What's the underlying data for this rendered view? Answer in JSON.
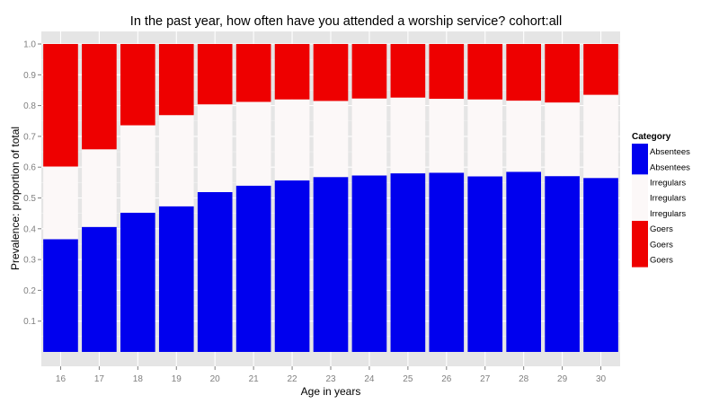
{
  "chart_data": {
    "type": "bar",
    "stacked": true,
    "title": "In the past year, how often have you attended a worship service?   cohort:all",
    "xlabel": "Age in years",
    "ylabel": "Prevalence: proportion of total",
    "ylim": [
      0,
      1.0
    ],
    "yticks": [
      "0.1",
      "0.2",
      "0.3",
      "0.4",
      "0.5",
      "0.6",
      "0.7",
      "0.8",
      "0.9",
      "1.0"
    ],
    "categories": [
      "16",
      "17",
      "18",
      "19",
      "20",
      "21",
      "22",
      "23",
      "24",
      "25",
      "26",
      "27",
      "28",
      "29",
      "30"
    ],
    "grid": true,
    "legend_position": "right",
    "legend": {
      "title": "Category",
      "entries": [
        {
          "labels": [
            "Absentees",
            "Absentees"
          ],
          "color": "#0000ee"
        },
        {
          "labels": [
            "Irregulars",
            "Irregulars",
            "Irregulars"
          ],
          "color": "#fcf8f8"
        },
        {
          "labels": [
            "Goers",
            "Goers",
            "Goers"
          ],
          "color": "#ee0000"
        }
      ]
    },
    "series": [
      {
        "name": "Absentees",
        "color": "#0000ee",
        "values": [
          0.366,
          0.406,
          0.452,
          0.473,
          0.519,
          0.54,
          0.557,
          0.568,
          0.573,
          0.58,
          0.582,
          0.57,
          0.585,
          0.571,
          0.565
        ]
      },
      {
        "name": "Irregulars",
        "color": "#fcf8f8",
        "values": [
          0.236,
          0.252,
          0.284,
          0.296,
          0.285,
          0.272,
          0.263,
          0.247,
          0.25,
          0.246,
          0.24,
          0.25,
          0.231,
          0.239,
          0.27
        ]
      },
      {
        "name": "Goers",
        "color": "#ee0000",
        "values": [
          0.398,
          0.342,
          0.264,
          0.231,
          0.196,
          0.188,
          0.18,
          0.185,
          0.177,
          0.174,
          0.178,
          0.18,
          0.184,
          0.19,
          0.165
        ]
      }
    ]
  }
}
